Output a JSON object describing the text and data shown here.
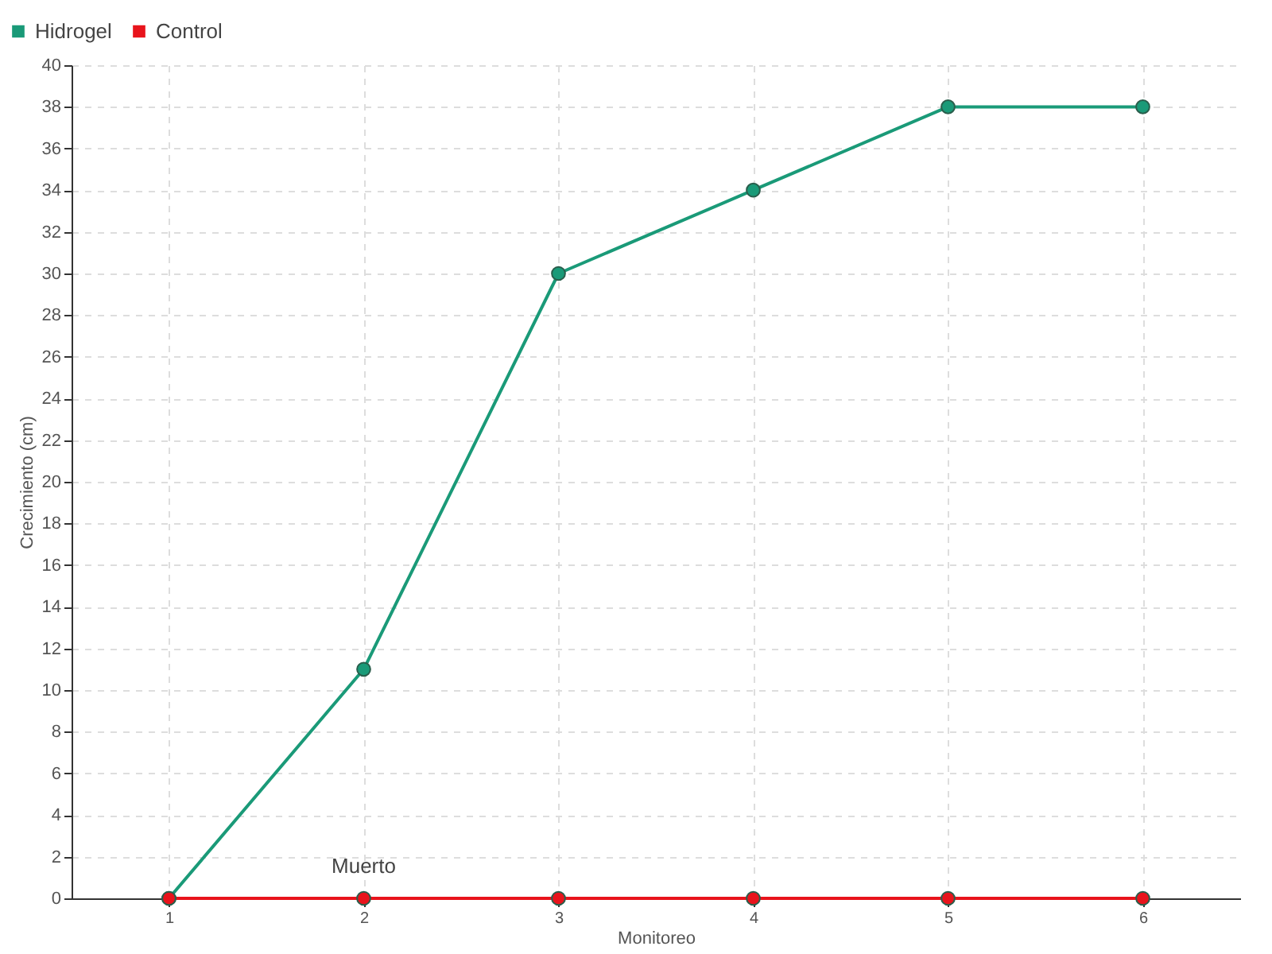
{
  "chart_data": {
    "type": "line",
    "xlabel": "Monitoreo",
    "ylabel": "Crecimiento (cm)",
    "categories": [
      "1",
      "2",
      "3",
      "4",
      "5",
      "6"
    ],
    "series": [
      {
        "name": "Hidrogel",
        "color": "#1a9a78",
        "values": [
          0,
          11,
          30,
          34,
          38,
          38
        ]
      },
      {
        "name": "Control",
        "color": "#e8141c",
        "values": [
          0,
          0,
          0,
          0,
          0,
          0
        ]
      }
    ],
    "ylim": [
      0,
      40
    ],
    "yticks": [
      0,
      2,
      4,
      6,
      8,
      10,
      12,
      14,
      16,
      18,
      20,
      22,
      24,
      26,
      28,
      30,
      32,
      34,
      36,
      38,
      40
    ],
    "grid": true,
    "legend": "top left",
    "marker": "circle",
    "line_style": "solid",
    "annotations": [
      {
        "text": "Muerto",
        "x": "2",
        "y": 0
      }
    ]
  }
}
